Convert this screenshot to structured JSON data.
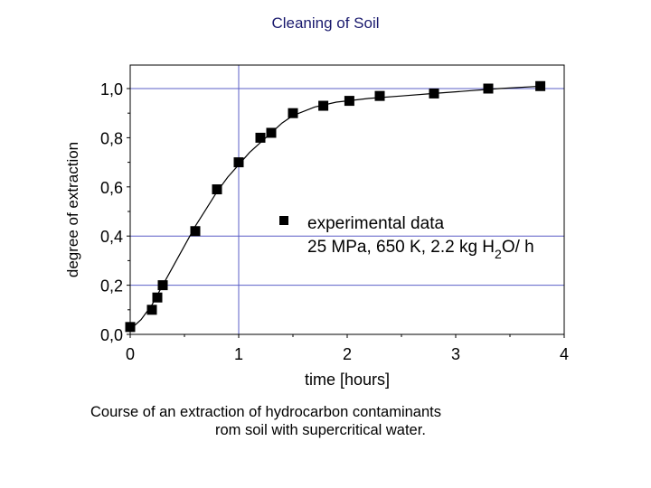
{
  "title": "Cleaning of Soil",
  "caption": {
    "line1": "Course of an extraction of hydrocarbon contaminants",
    "line2": "rom soil with supercritical water."
  },
  "chart_data": {
    "type": "scatter",
    "xlabel": "time [hours]",
    "ylabel": "degree of extraction",
    "xlim": [
      0,
      4
    ],
    "ylim": [
      0,
      1.05
    ],
    "x_ticks": [
      "0",
      "1",
      "2",
      "3",
      "4"
    ],
    "y_ticks": [
      "0,0",
      "0,2",
      "0,4",
      "0,6",
      "0,8",
      "1,0"
    ],
    "grid": "reference lines at x=1 and y=0.2, 0.4, 1.0",
    "legend": {
      "placement": "center-right",
      "label": "experimental data",
      "conditions_a": "25 MPa, 650 K, 2.2 kg H",
      "conditions_sub": "2",
      "conditions_b": "O/ h"
    },
    "series": [
      {
        "marker": "square",
        "x": [
          0.0,
          0.2,
          0.25,
          0.3,
          0.6,
          0.8,
          1.0,
          1.2,
          1.3,
          1.5,
          1.78,
          2.02,
          2.3,
          2.8,
          3.3,
          3.78
        ],
        "y": [
          0.03,
          0.1,
          0.15,
          0.2,
          0.42,
          0.59,
          0.7,
          0.8,
          0.82,
          0.9,
          0.93,
          0.95,
          0.97,
          0.98,
          1.0,
          1.01
        ]
      }
    ],
    "fit_curve": {
      "x": [
        0,
        0.1,
        0.2,
        0.3,
        0.4,
        0.5,
        0.6,
        0.7,
        0.8,
        0.9,
        1.0,
        1.1,
        1.2,
        1.3,
        1.4,
        1.5,
        1.7,
        1.9,
        2.2,
        2.5,
        2.8,
        3.1,
        3.4,
        3.8
      ],
      "y": [
        0.02,
        0.06,
        0.12,
        0.2,
        0.28,
        0.36,
        0.44,
        0.51,
        0.58,
        0.64,
        0.69,
        0.74,
        0.78,
        0.82,
        0.86,
        0.89,
        0.925,
        0.945,
        0.96,
        0.97,
        0.98,
        0.99,
        1.0,
        1.01
      ]
    },
    "colors": {
      "reference_lines": "#5b5fc7",
      "markers": "#000000",
      "title": "#1a1a6e"
    }
  }
}
